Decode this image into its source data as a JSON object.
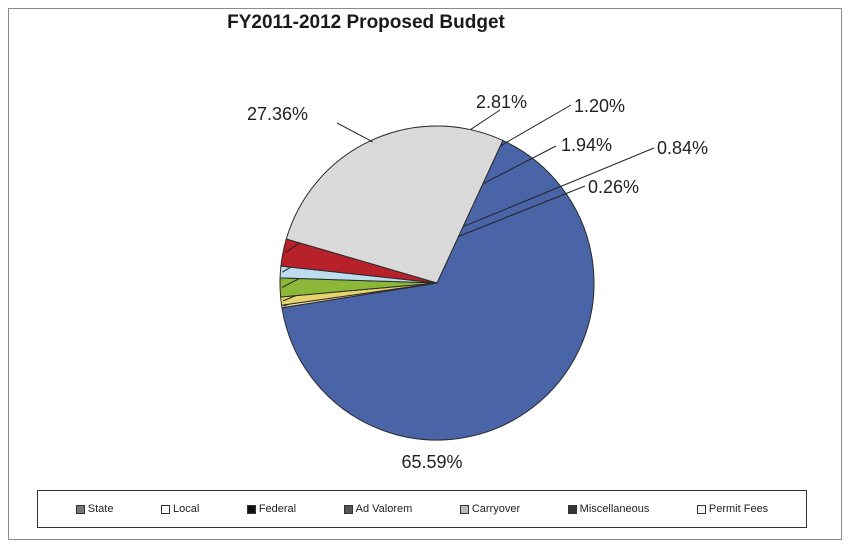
{
  "chart_data": {
    "type": "pie",
    "title": "FY2011-2012 Proposed Budget",
    "categories": [
      "State",
      "Local",
      "Federal",
      "Ad Valorem",
      "Carryover",
      "Miscellaneous",
      "Permit Fees"
    ],
    "values": [
      65.59,
      0.26,
      0.84,
      1.94,
      1.2,
      2.81,
      27.36
    ],
    "labels": [
      "65.59%",
      "0.26%",
      "0.84%",
      "1.94%",
      "1.20%",
      "2.81%",
      "27.36%"
    ],
    "colors": [
      "#4a64a8",
      "#f2e7a8",
      "#e6d36e",
      "#8cb83a",
      "#bcdcf0",
      "#b8202a",
      "#d9d9d9"
    ],
    "legend_placement": "bottom",
    "legend": [
      {
        "label": "State",
        "swatch": "#777777"
      },
      {
        "label": "Local",
        "swatch": "#ffffff"
      },
      {
        "label": "Federal",
        "swatch": "#111111"
      },
      {
        "label": "Ad Valorem",
        "swatch": "#555555"
      },
      {
        "label": "Carryover",
        "swatch": "#bbbbbb"
      },
      {
        "label": "Miscellaneous",
        "swatch": "#333333"
      },
      {
        "label": "Permit Fees",
        "swatch": "#f5f5f5"
      }
    ]
  }
}
